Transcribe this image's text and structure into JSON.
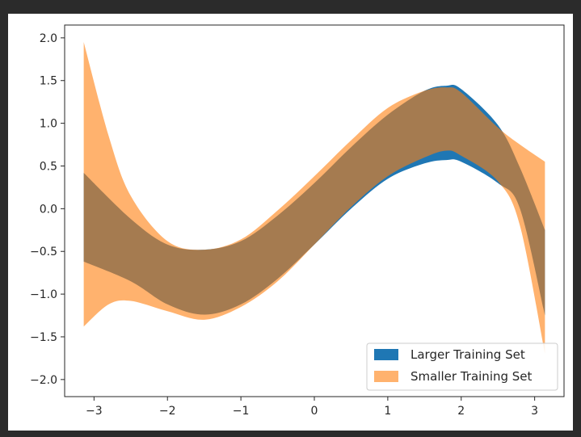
{
  "chart_data": {
    "type": "area",
    "title": "",
    "xlabel": "",
    "ylabel": "",
    "xlim": [
      -3.4,
      3.4
    ],
    "ylim": [
      -2.2,
      2.15
    ],
    "grid": false,
    "legend_position": "lower-right",
    "x_ticks": [
      {
        "value": -3,
        "label": "−3"
      },
      {
        "value": -2,
        "label": "−2"
      },
      {
        "value": -1,
        "label": "−1"
      },
      {
        "value": 0,
        "label": "0"
      },
      {
        "value": 1,
        "label": "1"
      },
      {
        "value": 2,
        "label": "2"
      },
      {
        "value": 3,
        "label": "3"
      }
    ],
    "y_ticks": [
      {
        "value": 2.0,
        "label": "2.0"
      },
      {
        "value": 1.5,
        "label": "1.5"
      },
      {
        "value": 1.0,
        "label": "1.0"
      },
      {
        "value": 0.5,
        "label": "0.5"
      },
      {
        "value": 0.0,
        "label": "0.0"
      },
      {
        "value": -0.5,
        "label": "−0.5"
      },
      {
        "value": -1.0,
        "label": "−1.0"
      },
      {
        "value": -1.5,
        "label": "−1.5"
      },
      {
        "value": -2.0,
        "label": "−2.0"
      }
    ],
    "series": [
      {
        "name": "Larger Training Set",
        "color": "#1f77b4",
        "opacity": 1.0,
        "x": [
          -3.14,
          -2.5,
          -2.0,
          -1.5,
          -1.0,
          -0.5,
          0.0,
          0.5,
          1.0,
          1.5,
          1.8,
          2.0,
          2.5,
          2.8,
          3.14
        ],
        "upper": [
          0.42,
          -0.12,
          -0.42,
          -0.48,
          -0.38,
          -0.08,
          0.3,
          0.72,
          1.1,
          1.38,
          1.44,
          1.4,
          0.98,
          0.48,
          -0.25
        ],
        "lower": [
          -0.62,
          -0.85,
          -1.12,
          -1.24,
          -1.12,
          -0.82,
          -0.42,
          0.0,
          0.35,
          0.53,
          0.57,
          0.55,
          0.3,
          0.0,
          -1.25
        ]
      },
      {
        "name": "Smaller Training Set",
        "color": "#ff7f0e",
        "opacity": 0.6,
        "x": [
          -3.14,
          -2.8,
          -2.5,
          -2.0,
          -1.5,
          -1.0,
          -0.5,
          0.0,
          0.5,
          1.0,
          1.5,
          1.8,
          2.0,
          2.5,
          2.8,
          3.14
        ],
        "upper": [
          1.95,
          0.85,
          0.15,
          -0.38,
          -0.48,
          -0.36,
          -0.02,
          0.38,
          0.8,
          1.18,
          1.38,
          1.42,
          1.36,
          0.95,
          0.75,
          0.55
        ],
        "lower": [
          -1.38,
          -1.12,
          -1.08,
          -1.2,
          -1.3,
          -1.15,
          -0.85,
          -0.42,
          0.02,
          0.38,
          0.6,
          0.68,
          0.62,
          0.32,
          -0.2,
          -1.7
        ]
      }
    ]
  }
}
